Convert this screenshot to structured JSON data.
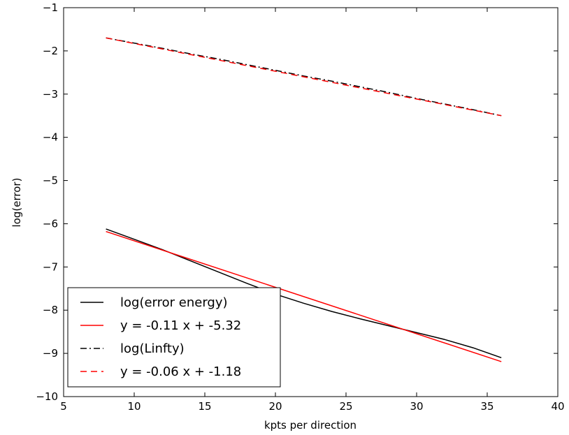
{
  "chart_data": {
    "type": "line",
    "title": "",
    "xlabel": "kpts per direction",
    "ylabel": "log(error)",
    "xlim": [
      5,
      40
    ],
    "ylim": [
      -10,
      -1
    ],
    "xticks": [
      5,
      10,
      15,
      20,
      25,
      30,
      35,
      40
    ],
    "yticks": [
      -10,
      -9,
      -8,
      -7,
      -6,
      -5,
      -4,
      -3,
      -2,
      -1
    ],
    "tick_minus": "−",
    "grid": false,
    "legend_position": "lower-left",
    "series": [
      {
        "name": "log(error energy)",
        "color": "#000000",
        "style": "solid",
        "x": [
          8,
          10,
          12,
          14,
          16,
          18,
          20,
          22,
          24,
          26,
          28,
          30,
          32,
          34,
          36
        ],
        "y": [
          -6.12,
          -6.36,
          -6.6,
          -6.86,
          -7.12,
          -7.38,
          -7.63,
          -7.84,
          -8.03,
          -8.2,
          -8.36,
          -8.52,
          -8.68,
          -8.87,
          -9.1
        ]
      },
      {
        "name": "y = -0.11 x + -5.32",
        "color": "#ff0000",
        "style": "solid",
        "x": [
          8,
          36
        ],
        "y": [
          -6.18,
          -9.19
        ]
      },
      {
        "name": "log(Linfty)",
        "color": "#000000",
        "style": "dashdot",
        "x": [
          8,
          10,
          12,
          14,
          16,
          18,
          20,
          22,
          24,
          26,
          28,
          30,
          32,
          34,
          36
        ],
        "y": [
          -1.7,
          -1.82,
          -1.94,
          -2.07,
          -2.19,
          -2.32,
          -2.45,
          -2.58,
          -2.7,
          -2.83,
          -2.96,
          -3.1,
          -3.23,
          -3.36,
          -3.5
        ]
      },
      {
        "name": "y = -0.06 x + -1.18",
        "color": "#ff0000",
        "style": "dashed",
        "x": [
          8,
          36
        ],
        "y": [
          -1.7,
          -3.5
        ]
      }
    ]
  }
}
